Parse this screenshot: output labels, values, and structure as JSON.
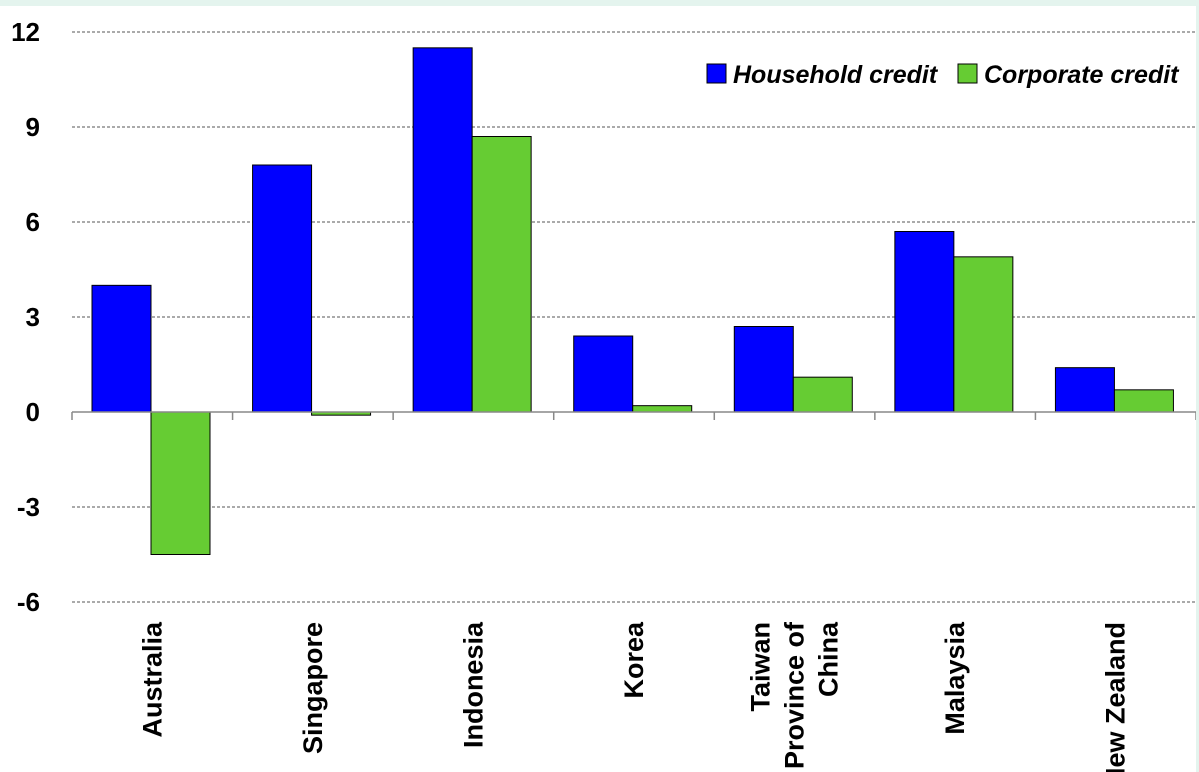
{
  "chart_data": {
    "type": "bar",
    "categories": [
      [
        "Australia"
      ],
      [
        "Singapore"
      ],
      [
        "Indonesia"
      ],
      [
        "Korea"
      ],
      [
        "Taiwan",
        "Province of",
        "China"
      ],
      [
        "Malaysia"
      ],
      [
        "New Zealand"
      ]
    ],
    "series": [
      {
        "name": "Household credit",
        "color": "#0000ff",
        "values": [
          4.0,
          7.8,
          11.5,
          2.4,
          2.7,
          5.7,
          1.4
        ]
      },
      {
        "name": "Corporate credit",
        "color": "#66cc33",
        "values": [
          -4.5,
          -0.1,
          8.7,
          0.2,
          1.1,
          4.9,
          0.7
        ]
      }
    ],
    "yticks": [
      "12",
      "9",
      "6",
      "3",
      "0",
      "-3",
      "-6"
    ],
    "ylim": [
      -6,
      12
    ],
    "grid": true,
    "legend_position": "top-right",
    "title": "",
    "xlabel": "",
    "ylabel": ""
  }
}
